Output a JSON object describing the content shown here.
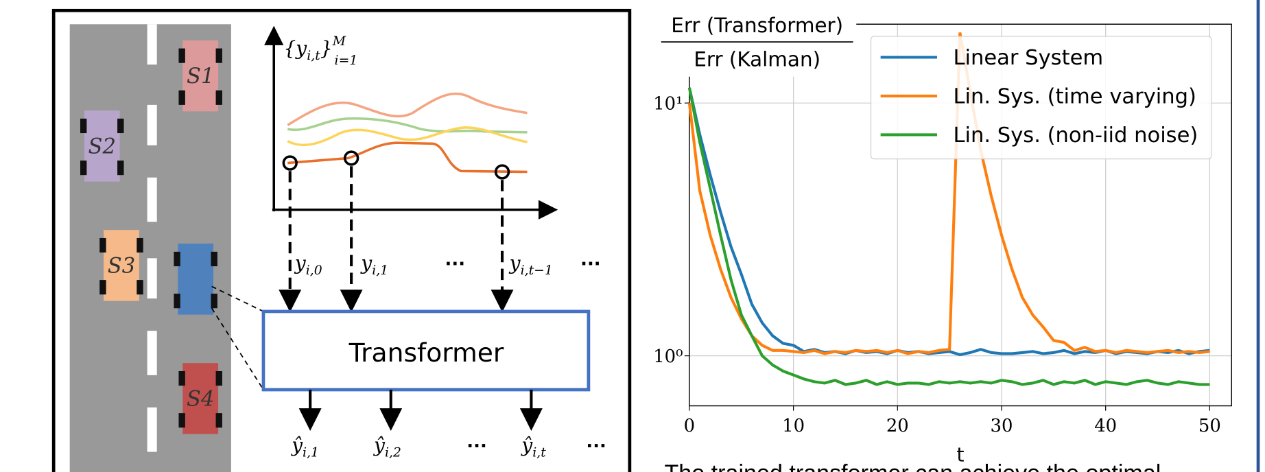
{
  "diagram": {
    "cars": [
      "S1",
      "S2",
      "S3",
      "S4"
    ],
    "plot_label": {
      "base": "{y",
      "sub": "i,t",
      "close": "}",
      "sup": "M",
      "low": "i=1"
    },
    "inputs": [
      {
        "base": "y",
        "sub": "i,0"
      },
      {
        "base": "y",
        "sub": "i,1"
      },
      {
        "base": "y",
        "sub": "i,t−1"
      }
    ],
    "ellipsis": "···",
    "box": "Transformer",
    "outputs": [
      {
        "base": "ŷ",
        "sub": "i,1"
      },
      {
        "base": "ŷ",
        "sub": "i,2"
      },
      {
        "base": "ŷ",
        "sub": "i,t"
      }
    ]
  },
  "chart_data": {
    "type": "line",
    "ylabel_num": "Err (Transformer)",
    "ylabel_den": "Err (Kalman)",
    "xlabel": "t",
    "x": [
      0,
      1,
      2,
      3,
      4,
      5,
      6,
      7,
      8,
      9,
      10,
      11,
      12,
      13,
      14,
      15,
      16,
      17,
      18,
      19,
      20,
      21,
      22,
      23,
      24,
      25,
      26,
      27,
      28,
      29,
      30,
      31,
      32,
      33,
      34,
      35,
      36,
      37,
      38,
      39,
      40,
      41,
      42,
      43,
      44,
      45,
      46,
      47,
      48,
      49,
      50
    ],
    "series": [
      {
        "name": "Linear System",
        "color": "#1f77b4",
        "values": [
          11.5,
          7.5,
          5.2,
          3.7,
          2.7,
          2.1,
          1.6,
          1.35,
          1.2,
          1.12,
          1.1,
          1.04,
          1.06,
          1.03,
          1.04,
          1.02,
          1.05,
          1.03,
          1.04,
          1.02,
          1.05,
          1.03,
          1.04,
          1.02,
          1.03,
          1.04,
          1.01,
          1.03,
          1.06,
          1.03,
          1.02,
          1.02,
          1.03,
          1.04,
          1.02,
          1.03,
          1.05,
          1.02,
          1.04,
          1.03,
          1.05,
          1.02,
          1.04,
          1.03,
          1.02,
          1.04,
          1.03,
          1.05,
          1.02,
          1.04,
          1.05
        ]
      },
      {
        "name": "Lin. Sys. (time varying)",
        "color": "#ff7f0e",
        "values": [
          10,
          4.5,
          3.0,
          2.2,
          1.7,
          1.4,
          1.2,
          1.1,
          1.05,
          1.05,
          1.04,
          1.03,
          1.05,
          1.02,
          1.04,
          1.03,
          1.05,
          1.04,
          1.05,
          1.03,
          1.05,
          1.02,
          1.04,
          1.03,
          1.05,
          1.06,
          19,
          11,
          6.5,
          4.3,
          3.0,
          2.2,
          1.7,
          1.45,
          1.3,
          1.15,
          1.13,
          1.05,
          1.08,
          1.04,
          1.05,
          1.03,
          1.05,
          1.04,
          1.03,
          1.04,
          1.05,
          1.03,
          1.04,
          1.03,
          1.04
        ]
      },
      {
        "name": "Lin. Sys. (non-iid noise)",
        "color": "#2ca02c",
        "values": [
          11.5,
          7.0,
          4.6,
          3.0,
          2.0,
          1.45,
          1.2,
          1.0,
          0.92,
          0.87,
          0.84,
          0.81,
          0.79,
          0.78,
          0.8,
          0.77,
          0.78,
          0.8,
          0.77,
          0.79,
          0.77,
          0.78,
          0.78,
          0.77,
          0.79,
          0.78,
          0.79,
          0.78,
          0.79,
          0.78,
          0.8,
          0.79,
          0.77,
          0.78,
          0.8,
          0.77,
          0.79,
          0.78,
          0.8,
          0.77,
          0.79,
          0.78,
          0.77,
          0.79,
          0.8,
          0.78,
          0.77,
          0.79,
          0.78,
          0.77,
          0.77
        ]
      }
    ],
    "xlim": [
      0,
      52.1
    ],
    "ylim": [
      0.634,
      20.5
    ],
    "log_y": true,
    "grid": true,
    "legend": "upper right",
    "xticks": [
      0,
      10,
      20,
      30,
      40,
      50
    ],
    "yticks": [
      {
        "value": 1,
        "label": "10⁰"
      },
      {
        "value": 10,
        "label": "10¹"
      }
    ],
    "caption": "The trained transformer can achieve the optimal"
  }
}
